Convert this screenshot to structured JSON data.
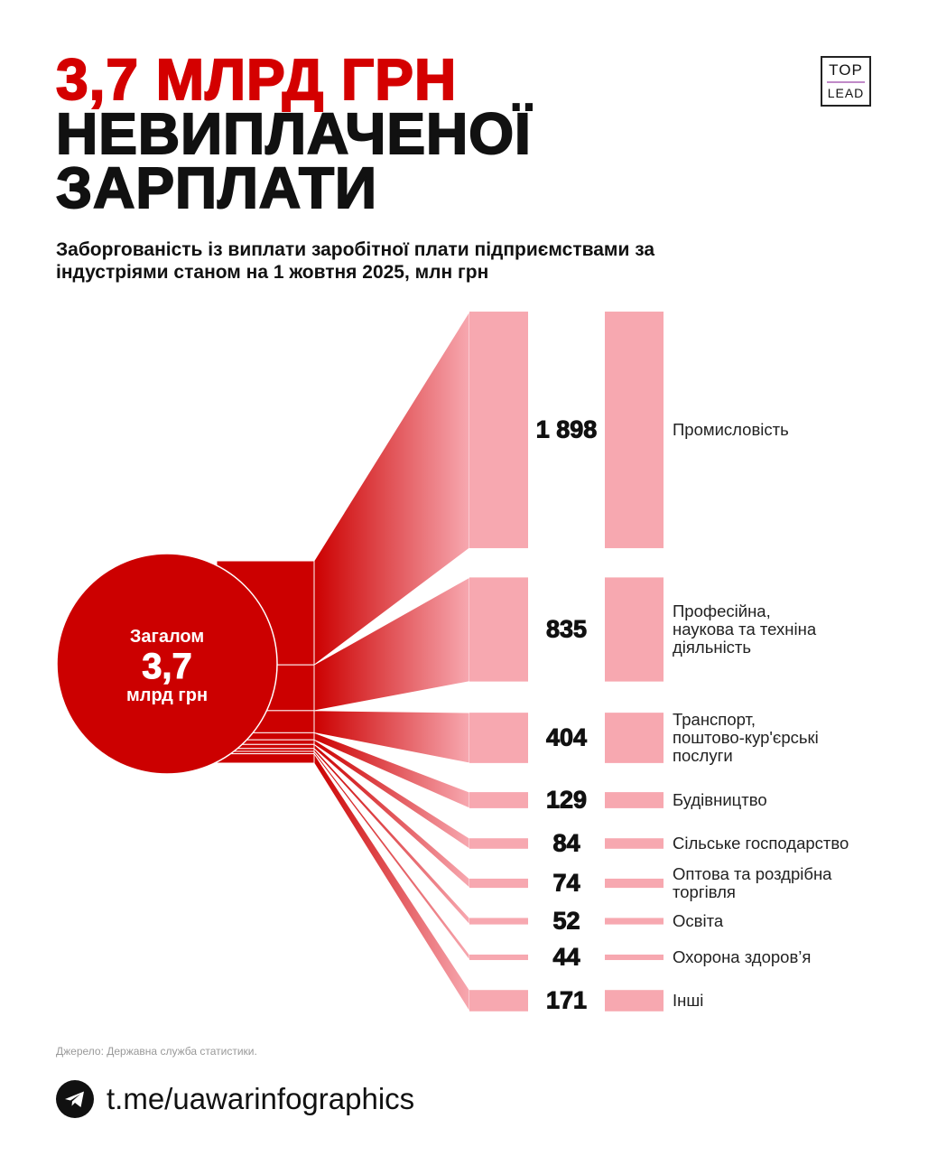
{
  "header": {
    "title_line1": "3,7 МЛРД ГРН",
    "title_line2": "НЕВИПЛАЧЕНОЇ",
    "title_line3": "ЗАРПЛАТИ",
    "subtitle": "Заборгованість із виплати заробітної плати підприємствами за індустріями станом на 1 жовтня 2025, млн грн",
    "logo": {
      "top": "TOP",
      "bottom": "LEAD"
    }
  },
  "chart_data": {
    "type": "sankey",
    "total": {
      "label": "Загалом",
      "value": "3,7",
      "unit": "млрд грн"
    },
    "categories": [
      "Промисловість",
      "Професійна,\nнаукова та техніна\nдіяльність",
      "Транспорт,\nпоштово-кур'єрські\nпослуги",
      "Будівництво",
      "Сільське господарство",
      "Оптова та роздрібна\nторгівля",
      "Освіта",
      "Охорона здоров’я",
      "Інші"
    ],
    "values": [
      1898,
      835,
      404,
      129,
      84,
      74,
      52,
      44,
      171
    ],
    "value_labels": [
      "1 898",
      "835",
      "404",
      "129",
      "84",
      "74",
      "52",
      "44",
      "171"
    ],
    "colors": {
      "primary": "#cc0000",
      "bar": "#f7a8b0",
      "text": "#111111"
    }
  },
  "footer": {
    "source": "Джерело: Державна служба статистики.",
    "icon": "telegram-icon",
    "link": "t.me/uawarinfographics"
  }
}
